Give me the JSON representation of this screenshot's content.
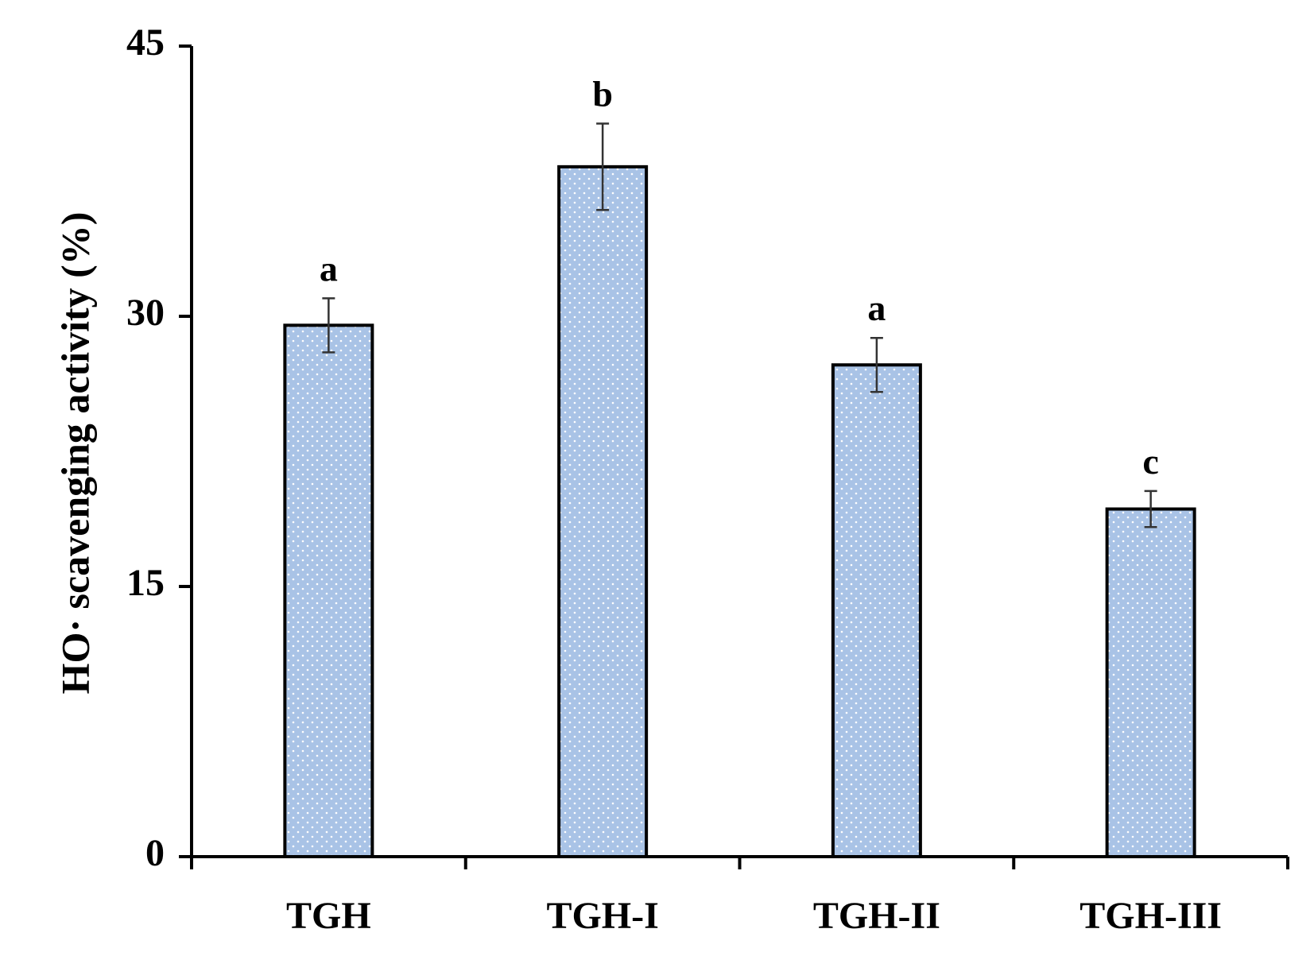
{
  "chart_data": {
    "type": "bar",
    "categories": [
      "TGH",
      "TGH-I",
      "TGH-II",
      "TGH-III"
    ],
    "values": [
      29.5,
      38.3,
      27.3,
      19.3
    ],
    "errors": [
      1.5,
      2.4,
      1.5,
      1.0
    ],
    "significance": [
      "a",
      "b",
      "a",
      "c"
    ],
    "ylabel": "HO· scavenging activity (%)",
    "xlabel": "",
    "ylim": [
      0,
      45
    ],
    "yticks": [
      "0",
      "15",
      "30",
      "45"
    ],
    "grid": false,
    "legend": "none",
    "bar_color": "#a9c3e6",
    "bar_dot_color": "#ffffff",
    "bar_edge_color": "#000000"
  }
}
